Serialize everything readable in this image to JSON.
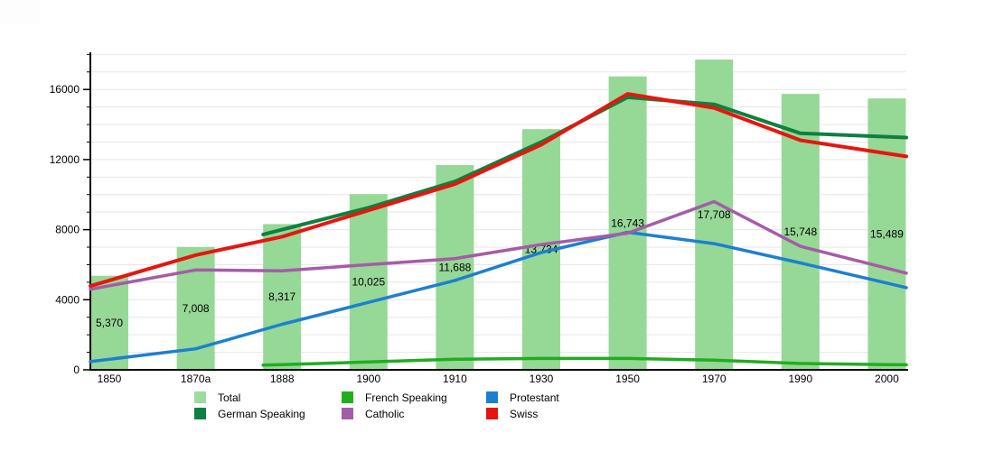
{
  "chart_data": {
    "type": "bar+line",
    "title": "",
    "xlabel": "",
    "ylabel": "",
    "categories": [
      "1850",
      "1870a",
      "1888",
      "1900",
      "1910",
      "1930",
      "1950",
      "1970",
      "1990",
      "2000"
    ],
    "yticks": [
      0,
      4000,
      8000,
      12000,
      16000
    ],
    "ylim": [
      0,
      18000
    ],
    "minor_gridline_step": 1000,
    "grid": true,
    "legend_position": "bottom",
    "bars": {
      "name": "Total",
      "color": "#96d896",
      "values": [
        5370,
        7008,
        8317,
        10025,
        11688,
        13734,
        16743,
        17708,
        15748,
        15489
      ],
      "labels": [
        "5,370",
        "7,008",
        "8,317",
        "10,025",
        "11,688",
        "13,734",
        "16,743",
        "17,708",
        "15,748",
        "15,489"
      ]
    },
    "series": [
      {
        "name": "German Speaking",
        "color": "#0e8040",
        "width": 4,
        "values": [
          null,
          null,
          8000,
          9250,
          10750,
          13000,
          15550,
          15150,
          13500,
          13300
        ]
      },
      {
        "name": "French Speaking",
        "color": "#1fae1f",
        "width": 3.5,
        "values": [
          null,
          null,
          300,
          450,
          600,
          650,
          650,
          550,
          360,
          300
        ]
      },
      {
        "name": "Protestant",
        "color": "#1d7fd1",
        "width": 3.5,
        "values": [
          600,
          1200,
          2600,
          3850,
          5100,
          6700,
          7850,
          7200,
          6100,
          4950
        ]
      },
      {
        "name": "Catholic",
        "color": "#a55ca8",
        "width": 3.5,
        "values": [
          4800,
          5700,
          5650,
          6000,
          6350,
          7150,
          7800,
          9600,
          7050,
          5800
        ]
      },
      {
        "name": "Swiss",
        "color": "#e8150f",
        "width": 4,
        "values": [
          5100,
          6550,
          7600,
          9100,
          10600,
          12850,
          15750,
          14950,
          13100,
          12350
        ]
      }
    ]
  },
  "legend": {
    "columns": [
      {
        "items": [
          {
            "label": "Total",
            "color": "#9edc9e"
          },
          {
            "label": "German Speaking",
            "color": "#0e8040"
          }
        ]
      },
      {
        "items": [
          {
            "label": "French Speaking",
            "color": "#1fae1f"
          },
          {
            "label": "Catholic",
            "color": "#a55ca8"
          }
        ]
      },
      {
        "items": [
          {
            "label": "Protestant",
            "color": "#1d7fd1"
          },
          {
            "label": "Swiss",
            "color": "#e8150f"
          }
        ]
      }
    ]
  }
}
